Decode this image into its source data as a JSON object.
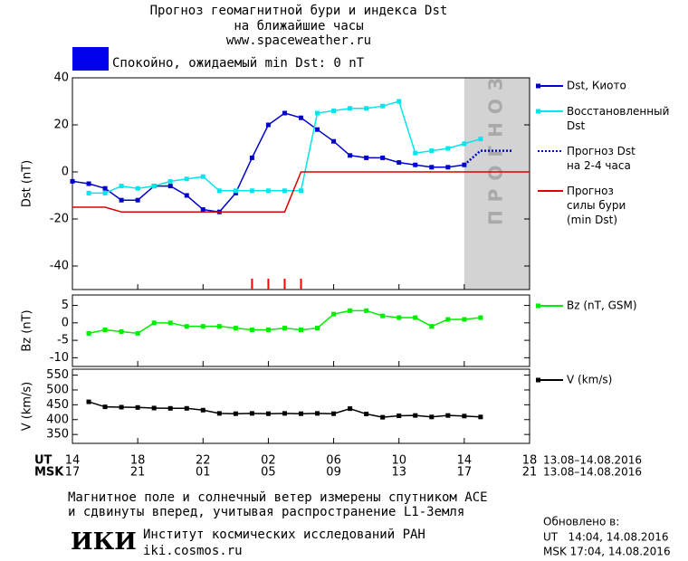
{
  "header": {
    "title_lines": [
      "Прогноз геомагнитной бури и индекса Dst",
      "на ближайшие часы"
    ],
    "url": "www.spaceweather.ru"
  },
  "status": {
    "text": "Спокойно, ожидаемый min Dst: 0 nT",
    "color": "#0000ee"
  },
  "chart_data": [
    {
      "type": "line",
      "ylabel": "Dst (nT)",
      "xlim": [
        14,
        42
      ],
      "ylim": [
        -50,
        40
      ],
      "yticks": [
        -40,
        -20,
        0,
        20,
        40
      ],
      "forecast_region": {
        "label": "ПРОГНОЗ",
        "from": 38,
        "to": 42,
        "color": "#d3d3d3"
      },
      "storm_marks": [
        25,
        26,
        27,
        28
      ],
      "storm_mark_color": "#ff0000",
      "series": [
        {
          "name": "Dst, Киото",
          "color": "#0000cc",
          "marker": "square",
          "dash": "solid",
          "x": [
            14,
            15,
            16,
            17,
            18,
            19,
            20,
            21,
            22,
            23,
            24,
            25,
            26,
            27,
            28,
            29,
            30,
            31,
            32,
            33,
            34,
            35,
            36,
            37,
            38
          ],
          "values": [
            -4,
            -5,
            -7,
            -12,
            -12,
            -6,
            -6,
            -10,
            -16,
            -17,
            -9,
            6,
            20,
            25,
            23,
            18,
            13,
            7,
            6,
            6,
            4,
            3,
            2,
            2,
            3
          ]
        },
        {
          "name": "Восстановленный\nDst",
          "color": "#00e5ee",
          "marker": "square",
          "dash": "solid",
          "x": [
            15,
            16,
            17,
            18,
            19,
            20,
            21,
            22,
            23,
            24,
            25,
            26,
            27,
            28,
            29,
            30,
            31,
            32,
            33,
            34,
            35,
            36,
            37,
            38,
            39
          ],
          "values": [
            -9,
            -9,
            -6,
            -7,
            -6,
            -4,
            -3,
            -2,
            -8,
            -8,
            -8,
            -8,
            -8,
            -8,
            25,
            26,
            27,
            27,
            28,
            30,
            8,
            9,
            10,
            12,
            14
          ]
        },
        {
          "name": "Прогноз Dst\nна 2-4 часа",
          "color": "#0000cc",
          "marker": "none",
          "dash": "dotted",
          "x": [
            38,
            39,
            40,
            41
          ],
          "values": [
            3,
            9,
            9,
            9
          ]
        },
        {
          "name": "Прогноз\nсилы бури\n(min Dst)",
          "color": "#dd0000",
          "marker": "none",
          "dash": "solid",
          "x": [
            14,
            16,
            17,
            27,
            28,
            42
          ],
          "values": [
            -15,
            -15,
            -17,
            -17,
            0,
            0
          ]
        }
      ]
    },
    {
      "type": "line",
      "ylabel": "Bz (nT)",
      "xlim": [
        14,
        42
      ],
      "ylim": [
        -12.5,
        8
      ],
      "yticks": [
        -10,
        -5,
        0,
        5
      ],
      "series": [
        {
          "name": "Bz (nT, GSM)",
          "color": "#00ee00",
          "marker": "square",
          "dash": "solid",
          "x": [
            15,
            16,
            17,
            18,
            19,
            20,
            21,
            22,
            23,
            24,
            25,
            26,
            27,
            28,
            29,
            30,
            31,
            32,
            33,
            34,
            35,
            36,
            37,
            38,
            39
          ],
          "values": [
            -3,
            -2,
            -2.5,
            -3,
            0,
            0,
            -1,
            -1,
            -1,
            -1.5,
            -2,
            -2,
            -1.5,
            -2,
            -1.5,
            2.5,
            3.5,
            3.5,
            2,
            1.5,
            1.5,
            -1,
            1,
            1,
            1.5
          ]
        }
      ]
    },
    {
      "type": "line",
      "ylabel": "V (km/s)",
      "xlim": [
        14,
        42
      ],
      "ylim": [
        320,
        570
      ],
      "yticks": [
        350,
        400,
        450,
        500,
        550
      ],
      "series": [
        {
          "name": "V (km/s)",
          "color": "#000000",
          "marker": "square",
          "dash": "solid",
          "x": [
            15,
            16,
            17,
            18,
            19,
            20,
            21,
            22,
            23,
            24,
            25,
            26,
            27,
            28,
            29,
            30,
            31,
            32,
            33,
            34,
            35,
            36,
            37,
            38,
            39
          ],
          "values": [
            460,
            443,
            442,
            441,
            439,
            438,
            438,
            432,
            421,
            420,
            421,
            420,
            421,
            420,
            421,
            420,
            437,
            419,
            408,
            413,
            414,
            409,
            414,
            412,
            409
          ]
        }
      ],
      "row_labels": [
        "UT",
        "MSK"
      ],
      "date_range": "13.08–14.08.2016",
      "xticks": [
        {
          "value": 14,
          "label": "14"
        },
        {
          "value": 18,
          "label": "18"
        },
        {
          "value": 22,
          "label": "22"
        },
        {
          "value": 26,
          "label": "02"
        },
        {
          "value": 30,
          "label": "06"
        },
        {
          "value": 34,
          "label": "10"
        },
        {
          "value": 38,
          "label": "14"
        },
        {
          "value": 42,
          "label": "18"
        }
      ],
      "xticks_msk": [
        {
          "value": 14,
          "label": "17"
        },
        {
          "value": 18,
          "label": "21"
        },
        {
          "value": 22,
          "label": "01"
        },
        {
          "value": 26,
          "label": "05"
        },
        {
          "value": 30,
          "label": "09"
        },
        {
          "value": 34,
          "label": "13"
        },
        {
          "value": 38,
          "label": "17"
        },
        {
          "value": 42,
          "label": "21"
        }
      ]
    }
  ],
  "footer": {
    "note_lines": [
      "Магнитное поле и солнечный ветер измерены спутником ACE",
      "и сдвинуты вперед, учитывая распространение L1-Земля"
    ],
    "logo": "ИКИ",
    "institute": "Институт космических исследований РАН",
    "site": "iki.cosmos.ru",
    "updated_label": "Обновлено в:",
    "updated_ut": "UT   14:04, 14.08.2016",
    "updated_msk": "MSK 17:04, 14.08.2016"
  }
}
